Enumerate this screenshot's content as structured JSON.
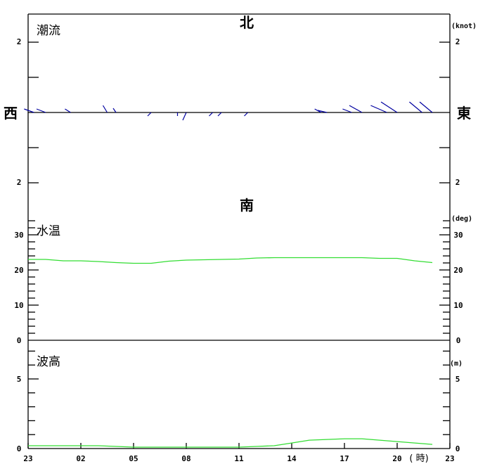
{
  "chart_data": [
    {
      "type": "vector",
      "title": "潮流",
      "unit": "(knot)",
      "directions": {
        "north": "北",
        "south": "南",
        "west": "西",
        "east": "東"
      },
      "ylim": [
        -3,
        2.8
      ],
      "yticks_labeled": [
        "2",
        "2"
      ],
      "sticks": [
        {
          "time": "23:20",
          "u": -0.28,
          "v": 0.1
        },
        {
          "time": "00:00",
          "u": -0.26,
          "v": 0.1
        },
        {
          "time": "01:25",
          "u": -0.16,
          "v": 0.1
        },
        {
          "time": "03:30",
          "u": -0.12,
          "v": 0.2
        },
        {
          "time": "04:00",
          "u": -0.08,
          "v": 0.12
        },
        {
          "time": "06:00",
          "u": -0.1,
          "v": -0.1
        },
        {
          "time": "07:30",
          "u": 0,
          "v": -0.1
        },
        {
          "time": "08:00",
          "u": -0.1,
          "v": -0.22
        },
        {
          "time": "09:30",
          "u": -0.1,
          "v": -0.1
        },
        {
          "time": "10:00",
          "u": -0.1,
          "v": -0.1
        },
        {
          "time": "11:30",
          "u": -0.1,
          "v": -0.1
        },
        {
          "time": "15:40",
          "u": -0.18,
          "v": 0.1
        },
        {
          "time": "16:00",
          "u": -0.26,
          "v": 0.06
        },
        {
          "time": "17:25",
          "u": -0.26,
          "v": 0.1
        },
        {
          "time": "18:00",
          "u": -0.36,
          "v": 0.2
        },
        {
          "time": "19:25",
          "u": -0.46,
          "v": 0.2
        },
        {
          "time": "20:00",
          "u": -0.46,
          "v": 0.3
        },
        {
          "time": "21:25",
          "u": -0.36,
          "v": 0.3
        },
        {
          "time": "22:00",
          "u": -0.36,
          "v": 0.3
        }
      ],
      "color": "#0000a0"
    },
    {
      "type": "line",
      "title": "水温",
      "unit": "(deg)",
      "ylim": [
        0,
        34
      ],
      "yticks": [
        "0",
        "10",
        "20",
        "30"
      ],
      "x": [
        "23",
        "00",
        "01",
        "02",
        "03",
        "04",
        "05",
        "06",
        "07",
        "08",
        "09",
        "10",
        "11",
        "12",
        "13",
        "14",
        "15",
        "16",
        "17",
        "18",
        "19",
        "20",
        "21",
        "22"
      ],
      "values": [
        23.0,
        23.0,
        22.6,
        22.6,
        22.4,
        22.1,
        21.9,
        21.9,
        22.5,
        22.8,
        22.9,
        23.0,
        23.1,
        23.4,
        23.5,
        23.5,
        23.5,
        23.5,
        23.5,
        23.5,
        23.3,
        23.3,
        22.6,
        22.1
      ],
      "color": "#33dd33"
    },
    {
      "type": "line",
      "title": "波高",
      "unit": "(m)",
      "ylim": [
        0,
        7.7
      ],
      "yticks": [
        "0",
        "5"
      ],
      "x": [
        "23",
        "00",
        "01",
        "02",
        "03",
        "04",
        "05",
        "06",
        "07",
        "08",
        "09",
        "10",
        "11",
        "12",
        "13",
        "14",
        "15",
        "16",
        "17",
        "18",
        "19",
        "20",
        "21",
        "22"
      ],
      "values": [
        0.2,
        0.2,
        0.2,
        0.2,
        0.2,
        0.15,
        0.1,
        0.1,
        0.1,
        0.1,
        0.1,
        0.1,
        0.1,
        0.15,
        0.2,
        0.4,
        0.6,
        0.65,
        0.7,
        0.7,
        0.6,
        0.5,
        0.4,
        0.3
      ],
      "color": "#33dd33"
    }
  ],
  "xaxis": {
    "ticks": [
      "23",
      "02",
      "05",
      "08",
      "11",
      "14",
      "17",
      "20",
      "23"
    ],
    "unit": "( 時)"
  }
}
